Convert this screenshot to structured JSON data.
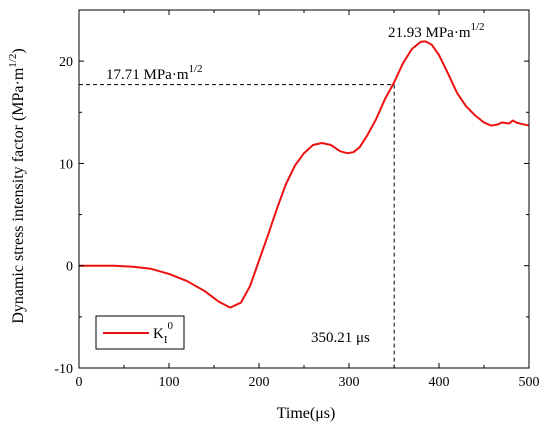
{
  "chart_data": {
    "type": "line",
    "xlabel": "Time(μs)",
    "ylabel": "Dynamic stress intensity factor (MPa·m",
    "ylabel_sup": "1/2",
    "ylabel_tail": ")",
    "xlim": [
      0,
      500
    ],
    "ylim": [
      -10,
      25
    ],
    "x_ticks": [
      0,
      100,
      200,
      300,
      400,
      500
    ],
    "y_ticks": [
      -10,
      0,
      10,
      20
    ],
    "grid": false,
    "legend": {
      "placement": "bottom-left",
      "main": "K",
      "sub": "I",
      "sup": "0"
    },
    "series": [
      {
        "name": "KI0",
        "color": "#ee1111",
        "x": [
          0,
          40,
          60,
          80,
          100,
          120,
          140,
          155,
          168,
          180,
          190,
          200,
          210,
          220,
          230,
          240,
          250,
          260,
          270,
          280,
          290,
          298,
          305,
          312,
          320,
          330,
          340,
          350,
          360,
          370,
          380,
          385,
          392,
          400,
          410,
          420,
          430,
          440,
          450,
          458,
          465,
          470,
          478,
          482,
          486,
          490,
          495,
          500
        ],
        "y": [
          0,
          0,
          -0.1,
          -0.3,
          -0.8,
          -1.5,
          -2.5,
          -3.5,
          -4.1,
          -3.6,
          -2.0,
          0.5,
          3.0,
          5.6,
          8.0,
          9.8,
          11.0,
          11.8,
          12.0,
          11.8,
          11.2,
          11.0,
          11.1,
          11.6,
          12.7,
          14.3,
          16.3,
          17.9,
          19.8,
          21.2,
          21.9,
          21.93,
          21.6,
          20.6,
          18.8,
          16.9,
          15.6,
          14.7,
          14.0,
          13.7,
          13.8,
          14.0,
          13.9,
          14.2,
          14.0,
          13.9,
          13.8,
          13.7
        ]
      }
    ],
    "annotations": {
      "peak": {
        "value": "21.93",
        "x": 385,
        "y": 21.93,
        "label_main": "21.93 MPa·m",
        "label_sup": "1/2"
      },
      "level": {
        "value": "17.71",
        "x": 350.21,
        "y": 17.71,
        "label_main": "17.71 MPa·m",
        "label_sup": "1/2"
      },
      "time": {
        "value": "350.21",
        "label": "350.21 μs"
      }
    },
    "colors": {
      "axis": "#000000",
      "series": "#ee1111",
      "dashed": "#000000"
    }
  }
}
